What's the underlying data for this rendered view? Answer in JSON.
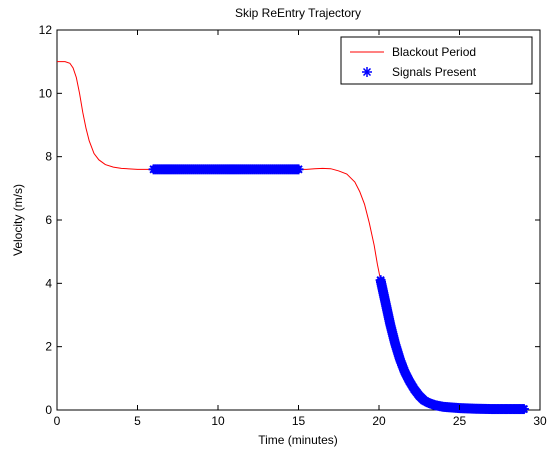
{
  "chart_data": {
    "type": "line",
    "title": "Skip ReEntry Trajectory",
    "xlabel": "Time (minutes)",
    "ylabel": "Velocity (m/s)",
    "xlim": [
      0,
      30
    ],
    "ylim": [
      0,
      12
    ],
    "xticks": [
      "0",
      "5",
      "10",
      "15",
      "20",
      "25",
      "30"
    ],
    "yticks": [
      "0",
      "2",
      "4",
      "6",
      "8",
      "10",
      "12"
    ],
    "grid": false,
    "legend_position": "top-right",
    "series": [
      {
        "name": "Blackout Period",
        "style": "line",
        "color": "#ff0000",
        "points": [
          [
            0,
            11.0
          ],
          [
            0.5,
            11.0
          ],
          [
            0.8,
            10.95
          ],
          [
            1.0,
            10.8
          ],
          [
            1.2,
            10.5
          ],
          [
            1.4,
            10.0
          ],
          [
            1.6,
            9.4
          ],
          [
            1.8,
            8.9
          ],
          [
            2.0,
            8.5
          ],
          [
            2.3,
            8.1
          ],
          [
            2.6,
            7.9
          ],
          [
            3.0,
            7.75
          ],
          [
            3.5,
            7.67
          ],
          [
            4.0,
            7.63
          ],
          [
            5.0,
            7.6
          ],
          [
            6.0,
            7.6
          ],
          [
            10.0,
            7.6
          ],
          [
            15.0,
            7.6
          ],
          [
            15.5,
            7.6
          ],
          [
            16.0,
            7.62
          ],
          [
            16.5,
            7.63
          ],
          [
            17.0,
            7.62
          ],
          [
            17.5,
            7.55
          ],
          [
            18.0,
            7.45
          ],
          [
            18.5,
            7.2
          ],
          [
            18.8,
            6.9
          ],
          [
            19.1,
            6.5
          ],
          [
            19.4,
            5.9
          ],
          [
            19.7,
            5.2
          ],
          [
            19.9,
            4.6
          ],
          [
            20.1,
            4.1
          ]
        ]
      },
      {
        "name": "Signals Present",
        "style": "marker",
        "marker": "*",
        "color": "#0000ff",
        "points": [
          [
            6.0,
            7.6
          ],
          [
            15.0,
            7.6
          ],
          [
            20.1,
            4.1
          ],
          [
            20.4,
            3.4
          ],
          [
            20.7,
            2.7
          ],
          [
            21.0,
            2.1
          ],
          [
            21.3,
            1.6
          ],
          [
            21.6,
            1.2
          ],
          [
            21.9,
            0.9
          ],
          [
            22.2,
            0.65
          ],
          [
            22.5,
            0.45
          ],
          [
            22.8,
            0.3
          ],
          [
            23.1,
            0.22
          ],
          [
            23.5,
            0.15
          ],
          [
            24.0,
            0.1
          ],
          [
            25.0,
            0.06
          ],
          [
            26.0,
            0.04
          ],
          [
            27.0,
            0.03
          ],
          [
            28.0,
            0.03
          ],
          [
            29.0,
            0.03
          ]
        ]
      }
    ]
  }
}
